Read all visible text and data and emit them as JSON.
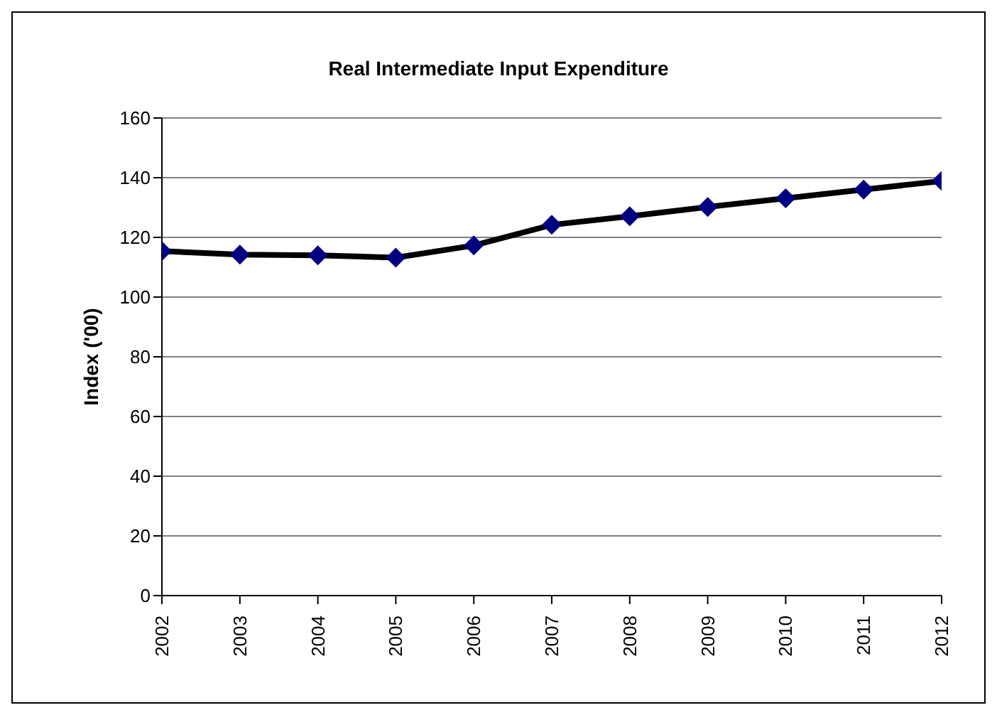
{
  "chart_data": {
    "type": "line",
    "title": "Real Intermediate Input Expenditure",
    "ylabel": "Index ('00)",
    "categories": [
      "2002",
      "2003",
      "2004",
      "2005",
      "2006",
      "2007",
      "2008",
      "2009",
      "2010",
      "2011",
      "2012"
    ],
    "series": [
      {
        "color": "#000080",
        "values": [
          115.4,
          114.2,
          114,
          113.2,
          117.3,
          124.2,
          127.1,
          130.2,
          133.1,
          136,
          138.9
        ]
      }
    ],
    "ylim": [
      0,
      160
    ],
    "yticks": [
      0,
      20,
      40,
      60,
      80,
      100,
      120,
      140,
      160
    ],
    "grid": "y",
    "marker": "diamond",
    "line_style": "solid",
    "legend": false
  }
}
